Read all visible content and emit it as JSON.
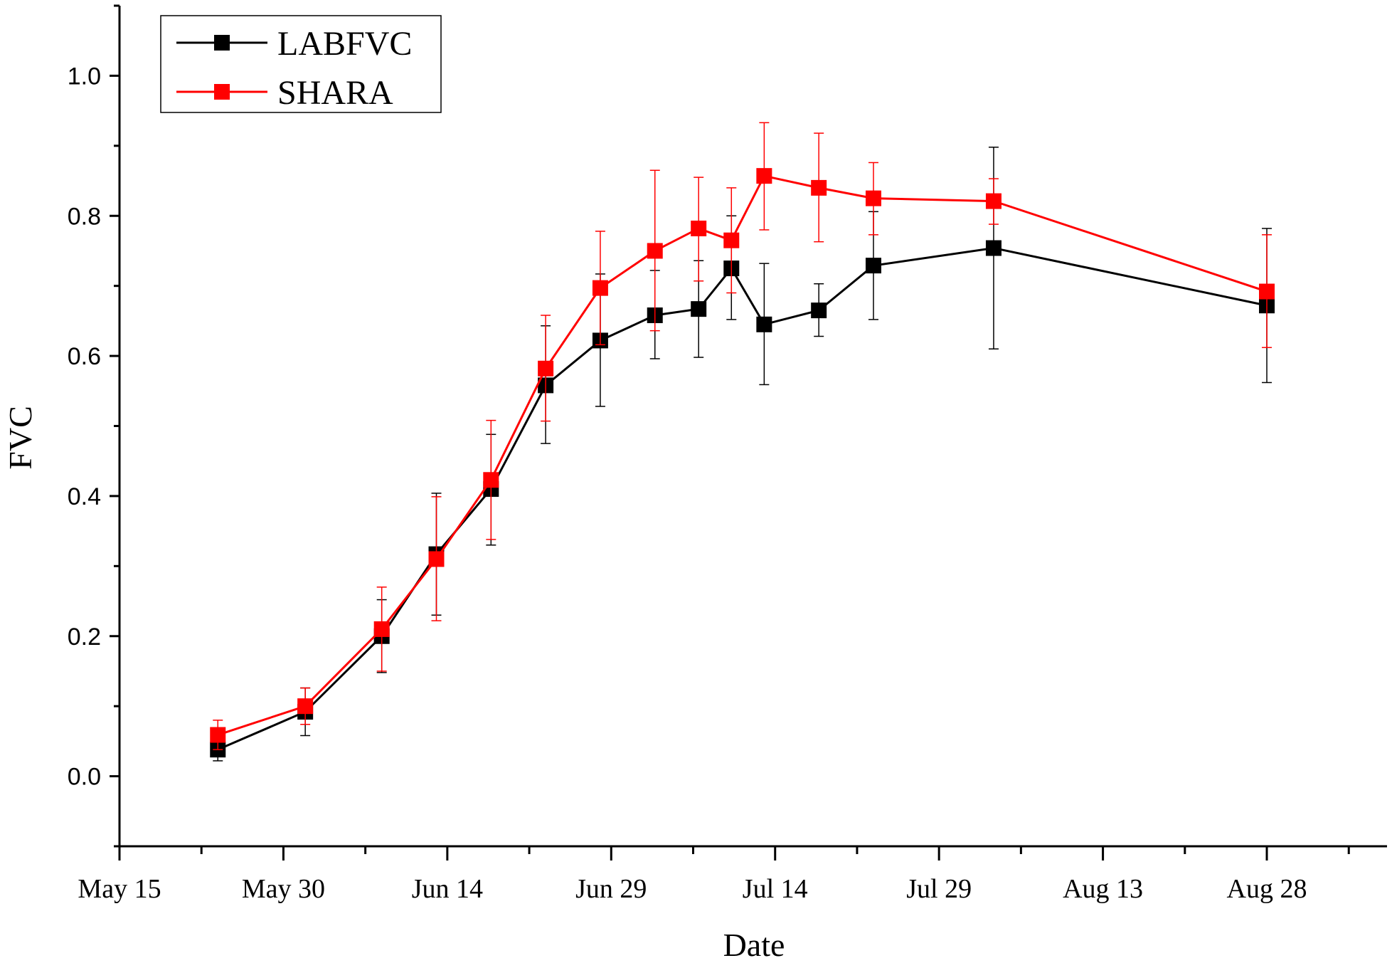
{
  "chart_data": {
    "type": "line",
    "title": "",
    "xlabel": "Date",
    "ylabel": "FVC",
    "xlim": [
      0,
      116
    ],
    "ylim": [
      -0.1,
      1.1
    ],
    "x_ticks": [
      {
        "label": "May 15",
        "value": 0
      },
      {
        "label": "May 30",
        "value": 15
      },
      {
        "label": "Jun 14",
        "value": 30
      },
      {
        "label": "Jun 29",
        "value": 45
      },
      {
        "label": "Jul 14",
        "value": 60
      },
      {
        "label": "Jul 29",
        "value": 75
      },
      {
        "label": "Aug 13",
        "value": 90
      },
      {
        "label": "Aug 28",
        "value": 105
      }
    ],
    "y_ticks": [
      {
        "label": "0.0",
        "value": 0.0
      },
      {
        "label": "0.2",
        "value": 0.2
      },
      {
        "label": "0.4",
        "value": 0.4
      },
      {
        "label": "0.6",
        "value": 0.6
      },
      {
        "label": "0.8",
        "value": 0.8
      },
      {
        "label": "1.0",
        "value": 1.0
      }
    ],
    "y_minor_ticks": [
      -0.1,
      0.1,
      0.3,
      0.5,
      0.7,
      0.9,
      1.1
    ],
    "x_minor_ticks": [
      7.5,
      22.5,
      37.5,
      52.5,
      67.5,
      82.5,
      97.5,
      112.5
    ],
    "legend_position": "top-left",
    "series": [
      {
        "name": "LABFVC",
        "color": "#000000",
        "marker": "square",
        "x": [
          9,
          17,
          24,
          29,
          34,
          39,
          44,
          49,
          53,
          56,
          59,
          64,
          69,
          80,
          105
        ],
        "y": [
          0.038,
          0.092,
          0.2,
          0.317,
          0.41,
          0.558,
          0.622,
          0.658,
          0.667,
          0.725,
          0.645,
          0.665,
          0.729,
          0.754,
          0.672
        ],
        "err_low": [
          0.022,
          0.058,
          0.148,
          0.23,
          0.33,
          0.475,
          0.528,
          0.596,
          0.598,
          0.652,
          0.559,
          0.628,
          0.652,
          0.61,
          0.562
        ],
        "err_high": [
          0.054,
          0.126,
          0.252,
          0.404,
          0.488,
          0.643,
          0.717,
          0.722,
          0.736,
          0.8,
          0.732,
          0.703,
          0.806,
          0.898,
          0.782
        ]
      },
      {
        "name": "SHARA",
        "color": "#ff0000",
        "marker": "square",
        "x": [
          9,
          17,
          24,
          29,
          34,
          39,
          44,
          49,
          53,
          56,
          59,
          64,
          69,
          80,
          105
        ],
        "y": [
          0.059,
          0.1,
          0.21,
          0.31,
          0.423,
          0.582,
          0.697,
          0.75,
          0.782,
          0.765,
          0.857,
          0.84,
          0.825,
          0.821,
          0.692
        ],
        "err_low": [
          0.038,
          0.074,
          0.15,
          0.222,
          0.338,
          0.507,
          0.616,
          0.636,
          0.707,
          0.69,
          0.78,
          0.763,
          0.773,
          0.788,
          0.612
        ],
        "err_high": [
          0.08,
          0.126,
          0.27,
          0.399,
          0.508,
          0.658,
          0.778,
          0.865,
          0.855,
          0.84,
          0.933,
          0.918,
          0.876,
          0.853,
          0.773
        ]
      }
    ]
  }
}
